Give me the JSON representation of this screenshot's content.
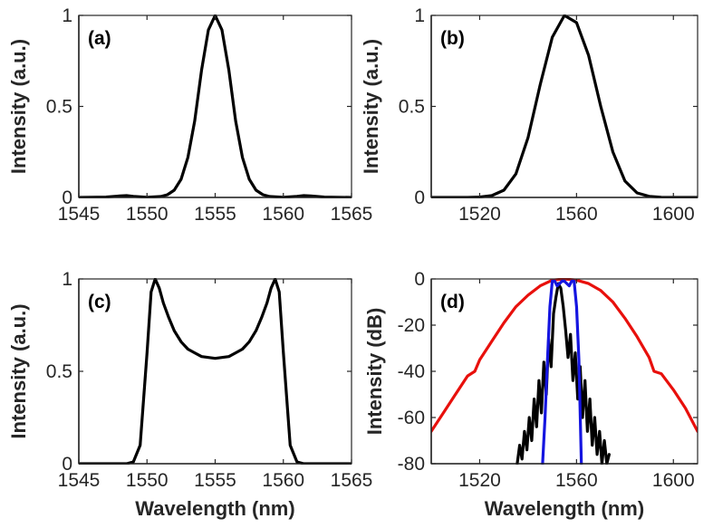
{
  "chart_data": [
    {
      "id": "a",
      "type": "line",
      "panel_label": "(a)",
      "xlabel": "",
      "ylabel": "Intensity (a.u.)",
      "xlim": [
        1545,
        1565
      ],
      "ylim": [
        0,
        1
      ],
      "xticks": [
        1545,
        1550,
        1555,
        1560,
        1565
      ],
      "xtick_labels": [
        "1545",
        "1550",
        "1555",
        "1560",
        "1565"
      ],
      "yticks": [
        0,
        0.5,
        1
      ],
      "ytick_labels": [
        "0",
        "0.5",
        "1"
      ],
      "grid": false,
      "series": [
        {
          "color": "#000000",
          "x": [
            1545,
            1547,
            1548,
            1548.5,
            1549,
            1550,
            1551,
            1551.5,
            1552,
            1552.5,
            1553,
            1553.5,
            1554,
            1554.5,
            1555,
            1555.5,
            1556,
            1556.5,
            1557,
            1557.5,
            1558,
            1558.5,
            1559,
            1560,
            1561,
            1561.5,
            1562,
            1563,
            1565
          ],
          "y": [
            0,
            0.002,
            0.008,
            0.01,
            0.006,
            0.001,
            0.005,
            0.015,
            0.04,
            0.1,
            0.22,
            0.42,
            0.7,
            0.92,
            1.0,
            0.92,
            0.7,
            0.42,
            0.22,
            0.1,
            0.04,
            0.015,
            0.005,
            0.001,
            0.006,
            0.01,
            0.008,
            0.002,
            0
          ]
        }
      ]
    },
    {
      "id": "b",
      "type": "line",
      "panel_label": "(b)",
      "xlabel": "",
      "ylabel": "Intensity (a.u.)",
      "xlim": [
        1500,
        1610
      ],
      "ylim": [
        0,
        1
      ],
      "xticks": [
        1520,
        1560,
        1600
      ],
      "xtick_labels": [
        "1520",
        "1560",
        "1600"
      ],
      "yticks": [
        0,
        0.5,
        1
      ],
      "ytick_labels": [
        "0",
        "0.5",
        "1"
      ],
      "grid": false,
      "series": [
        {
          "color": "#000000",
          "x": [
            1500,
            1515,
            1520,
            1525,
            1530,
            1535,
            1540,
            1545,
            1550,
            1555,
            1560,
            1565,
            1570,
            1575,
            1580,
            1585,
            1590,
            1595,
            1610
          ],
          "y": [
            0,
            0,
            0.002,
            0.01,
            0.04,
            0.13,
            0.33,
            0.62,
            0.88,
            1.0,
            0.96,
            0.78,
            0.5,
            0.25,
            0.09,
            0.025,
            0.006,
            0.001,
            0
          ]
        }
      ]
    },
    {
      "id": "c",
      "type": "line",
      "panel_label": "(c)",
      "xlabel": "Wavelength (nm)",
      "ylabel": "Intensity (a.u.)",
      "xlim": [
        1545,
        1565
      ],
      "ylim": [
        0,
        1
      ],
      "xticks": [
        1545,
        1550,
        1555,
        1560,
        1565
      ],
      "xtick_labels": [
        "1545",
        "1550",
        "1555",
        "1560",
        "1565"
      ],
      "yticks": [
        0,
        0.5,
        1
      ],
      "ytick_labels": [
        "0",
        "0.5",
        "1"
      ],
      "grid": false,
      "series": [
        {
          "color": "#000000",
          "x": [
            1545,
            1548.5,
            1549,
            1549.5,
            1550,
            1550.3,
            1550.6,
            1550.9,
            1551.2,
            1551.6,
            1552,
            1552.5,
            1553,
            1553.5,
            1554,
            1554.5,
            1555,
            1555.5,
            1556,
            1556.5,
            1557,
            1557.5,
            1558,
            1558.4,
            1558.8,
            1559.1,
            1559.4,
            1559.7,
            1560,
            1560.5,
            1561,
            1561.5,
            1565
          ],
          "y": [
            0,
            0,
            0.01,
            0.1,
            0.6,
            0.93,
            1.0,
            0.95,
            0.87,
            0.79,
            0.72,
            0.66,
            0.62,
            0.6,
            0.58,
            0.575,
            0.57,
            0.575,
            0.58,
            0.6,
            0.62,
            0.66,
            0.72,
            0.79,
            0.87,
            0.95,
            1.0,
            0.93,
            0.6,
            0.1,
            0.01,
            0,
            0
          ]
        }
      ]
    },
    {
      "id": "d",
      "type": "line",
      "panel_label": "(d)",
      "xlabel": "Wavelength (nm)",
      "ylabel": "Intensity (dB)",
      "xlim": [
        1500,
        1610
      ],
      "ylim": [
        -80,
        0
      ],
      "xticks": [
        1520,
        1560,
        1600
      ],
      "xtick_labels": [
        "1520",
        "1560",
        "1600"
      ],
      "yticks": [
        -80,
        -60,
        -40,
        -20,
        0
      ],
      "ytick_labels": [
        "-80",
        "-60",
        "-40",
        "-20",
        "0"
      ],
      "grid": false,
      "series": [
        {
          "color": "#e8100c",
          "x": [
            1500,
            1505,
            1510,
            1515,
            1518,
            1520,
            1525,
            1530,
            1535,
            1540,
            1545,
            1550,
            1555,
            1560,
            1565,
            1570,
            1575,
            1580,
            1585,
            1590,
            1592,
            1595,
            1600,
            1605,
            1610
          ],
          "y": [
            -66,
            -58,
            -50,
            -42,
            -40,
            -35,
            -27,
            -19,
            -12,
            -7,
            -3,
            -0.5,
            0,
            -0.5,
            -2,
            -5,
            -10,
            -17,
            -25,
            -34,
            -40,
            -41,
            -48,
            -56,
            -66
          ]
        },
        {
          "color": "#000000",
          "x": [
            1535.5,
            1536.5,
            1537.5,
            1538.5,
            1539.5,
            1540.5,
            1541.5,
            1542.5,
            1543.5,
            1544.5,
            1545.5,
            1546.5,
            1547.5,
            1548.5,
            1549.5,
            1550.5,
            1551.5,
            1552.5,
            1553.5,
            1554.5,
            1555.5,
            1556.5,
            1557.5,
            1558.5,
            1559.5,
            1560.5,
            1561.5,
            1562.5,
            1563.5,
            1564.5,
            1565.5,
            1566.5,
            1567.5,
            1568.5,
            1569.5,
            1570.5,
            1571.5,
            1572.5,
            1573.5
          ],
          "y": [
            -80,
            -72,
            -78,
            -66,
            -74,
            -60,
            -70,
            -52,
            -64,
            -44,
            -58,
            -36,
            -50,
            -26,
            -38,
            -15,
            -8,
            -2,
            -4,
            -12,
            -22,
            -34,
            -24,
            -44,
            -32,
            -52,
            -38,
            -60,
            -44,
            -66,
            -52,
            -72,
            -60,
            -76,
            -66,
            -80,
            -70,
            -80,
            -76
          ]
        },
        {
          "color": "#1515e0",
          "x": [
            1546,
            1547,
            1548,
            1549,
            1550,
            1551,
            1552,
            1553,
            1554,
            1555,
            1556,
            1557,
            1558,
            1559,
            1560,
            1561,
            1562
          ],
          "y": [
            -80,
            -60,
            -35,
            -12,
            -1,
            -1,
            -3,
            -2,
            -1,
            -1,
            -2,
            -3,
            -1,
            -1,
            -12,
            -35,
            -80
          ]
        }
      ]
    }
  ]
}
